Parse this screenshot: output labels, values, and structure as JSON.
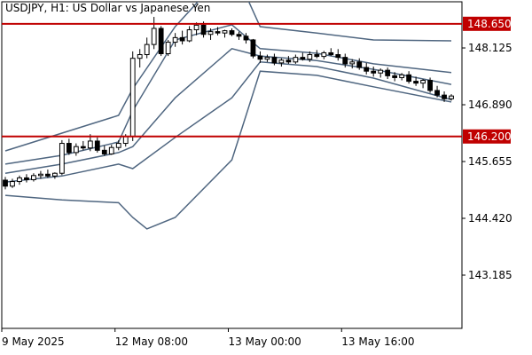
{
  "chart_data": {
    "type": "candlestick",
    "title": "USDJPY, H1:  US Dollar vs Japanese Yen",
    "ylim": [
      142.027,
      149.129
    ],
    "yticks": [
      {
        "value": 148.125,
        "label": "148.125"
      },
      {
        "value": 146.89,
        "label": "146.890"
      },
      {
        "value": 145.655,
        "label": "145.655"
      },
      {
        "value": 144.42,
        "label": "144.420"
      },
      {
        "value": 143.185,
        "label": "143.185"
      }
    ],
    "xlim": [
      0,
      65
    ],
    "xticks": [
      {
        "value": 0,
        "label": "9 May 2025"
      },
      {
        "value": 16,
        "label": "12 May 08:00"
      },
      {
        "value": 32,
        "label": "13 May 00:00"
      },
      {
        "value": 48,
        "label": "13 May 16:00"
      }
    ],
    "hlines": [
      {
        "value": 148.65,
        "label": "148.650",
        "color": "#c00000"
      },
      {
        "value": 146.2,
        "label": "146.200",
        "color": "#c00000"
      }
    ],
    "candles": {
      "open": [
        145.25,
        145.12,
        145.22,
        145.3,
        145.26,
        145.35,
        145.38,
        145.34,
        145.4,
        146.05,
        145.85,
        145.98,
        145.95,
        146.1,
        145.9,
        145.82,
        145.96,
        146.05,
        146.2,
        147.9,
        147.98,
        148.2,
        148.55,
        148.0,
        148.25,
        148.35,
        148.28,
        148.52,
        148.62,
        148.42,
        148.48,
        148.45,
        148.5,
        148.42,
        148.38,
        148.3,
        147.95,
        147.88,
        147.92,
        147.8,
        147.86,
        147.82,
        147.92,
        147.88,
        147.98,
        147.94,
        148.02,
        147.98,
        147.92,
        147.78,
        147.82,
        147.7,
        147.62,
        147.58,
        147.64,
        147.52,
        147.48,
        147.54,
        147.4,
        147.36,
        147.42,
        147.2,
        147.1,
        147.02
      ],
      "high": [
        145.32,
        145.28,
        145.35,
        145.38,
        145.4,
        145.45,
        145.48,
        145.42,
        146.12,
        146.15,
        146.05,
        146.1,
        146.25,
        146.18,
        146.0,
        146.02,
        146.12,
        146.25,
        148.05,
        148.1,
        148.35,
        148.8,
        148.6,
        148.3,
        148.45,
        148.5,
        148.6,
        148.68,
        148.7,
        148.55,
        148.58,
        148.52,
        148.55,
        148.48,
        148.45,
        148.32,
        148.05,
        147.98,
        148.0,
        147.9,
        147.95,
        147.98,
        148.02,
        148.05,
        148.08,
        148.06,
        148.12,
        148.1,
        148.0,
        147.88,
        147.9,
        147.8,
        147.72,
        147.68,
        147.7,
        147.6,
        147.58,
        147.62,
        147.5,
        147.45,
        147.48,
        147.3,
        147.18,
        147.12
      ],
      "low": [
        145.05,
        145.08,
        145.15,
        145.2,
        145.22,
        145.28,
        145.3,
        145.28,
        145.36,
        145.8,
        145.78,
        145.9,
        145.88,
        145.85,
        145.78,
        145.8,
        145.9,
        145.98,
        146.1,
        147.7,
        147.9,
        148.1,
        147.95,
        147.95,
        148.15,
        148.2,
        148.25,
        148.4,
        148.35,
        148.3,
        148.4,
        148.35,
        148.38,
        148.3,
        148.22,
        147.9,
        147.8,
        147.82,
        147.75,
        147.72,
        147.78,
        147.78,
        147.85,
        147.82,
        147.9,
        147.88,
        147.95,
        147.85,
        147.7,
        147.68,
        147.65,
        147.55,
        147.5,
        147.48,
        147.45,
        147.4,
        147.42,
        147.35,
        147.3,
        147.25,
        147.15,
        147.05,
        146.95,
        146.98
      ],
      "close": [
        145.12,
        145.22,
        145.3,
        145.26,
        145.35,
        145.38,
        145.34,
        145.4,
        146.05,
        145.85,
        145.98,
        145.95,
        146.1,
        145.9,
        145.82,
        145.96,
        146.05,
        146.2,
        147.9,
        147.98,
        148.2,
        148.55,
        148.0,
        148.25,
        148.35,
        148.28,
        148.52,
        148.62,
        148.42,
        148.48,
        148.45,
        148.5,
        148.42,
        148.38,
        148.3,
        147.95,
        147.88,
        147.92,
        147.8,
        147.86,
        147.82,
        147.92,
        147.88,
        147.98,
        147.94,
        148.02,
        147.98,
        147.92,
        147.78,
        147.82,
        147.7,
        147.62,
        147.58,
        147.64,
        147.52,
        147.48,
        147.54,
        147.4,
        147.36,
        147.42,
        147.2,
        147.1,
        147.02,
        147.08
      ]
    },
    "band_color": "#4f6680",
    "bands": [
      {
        "x": [
          0,
          8,
          16,
          18,
          24,
          32,
          36,
          44,
          52,
          63
        ],
        "values": [
          145.886,
          146.272,
          146.658,
          147.237,
          148.588,
          149.94,
          148.588,
          148.45,
          148.299,
          148.28
        ]
      },
      {
        "x": [
          0,
          8,
          16,
          18,
          24,
          32,
          36,
          44,
          52,
          63
        ],
        "values": [
          145.6,
          145.79,
          146.08,
          146.76,
          148.3,
          148.63,
          148.11,
          148.01,
          147.78,
          147.59
        ]
      },
      {
        "x": [
          0,
          8,
          16,
          18,
          24,
          32,
          36,
          44,
          52,
          63
        ],
        "values": [
          145.4,
          145.6,
          145.85,
          145.98,
          147.04,
          148.11,
          147.95,
          147.85,
          147.66,
          147.33
        ]
      },
      {
        "x": [
          0,
          8,
          16,
          18,
          24,
          32,
          36,
          44,
          52,
          63
        ],
        "values": [
          145.21,
          145.34,
          145.6,
          145.5,
          146.18,
          147.04,
          147.82,
          147.72,
          147.47,
          147.0
        ]
      },
      {
        "x": [
          0,
          8,
          16,
          18,
          20,
          24,
          32,
          36,
          44,
          52,
          63
        ],
        "values": [
          144.92,
          144.82,
          144.76,
          144.44,
          144.19,
          144.44,
          145.69,
          147.62,
          147.53,
          147.28,
          146.95
        ]
      }
    ]
  }
}
